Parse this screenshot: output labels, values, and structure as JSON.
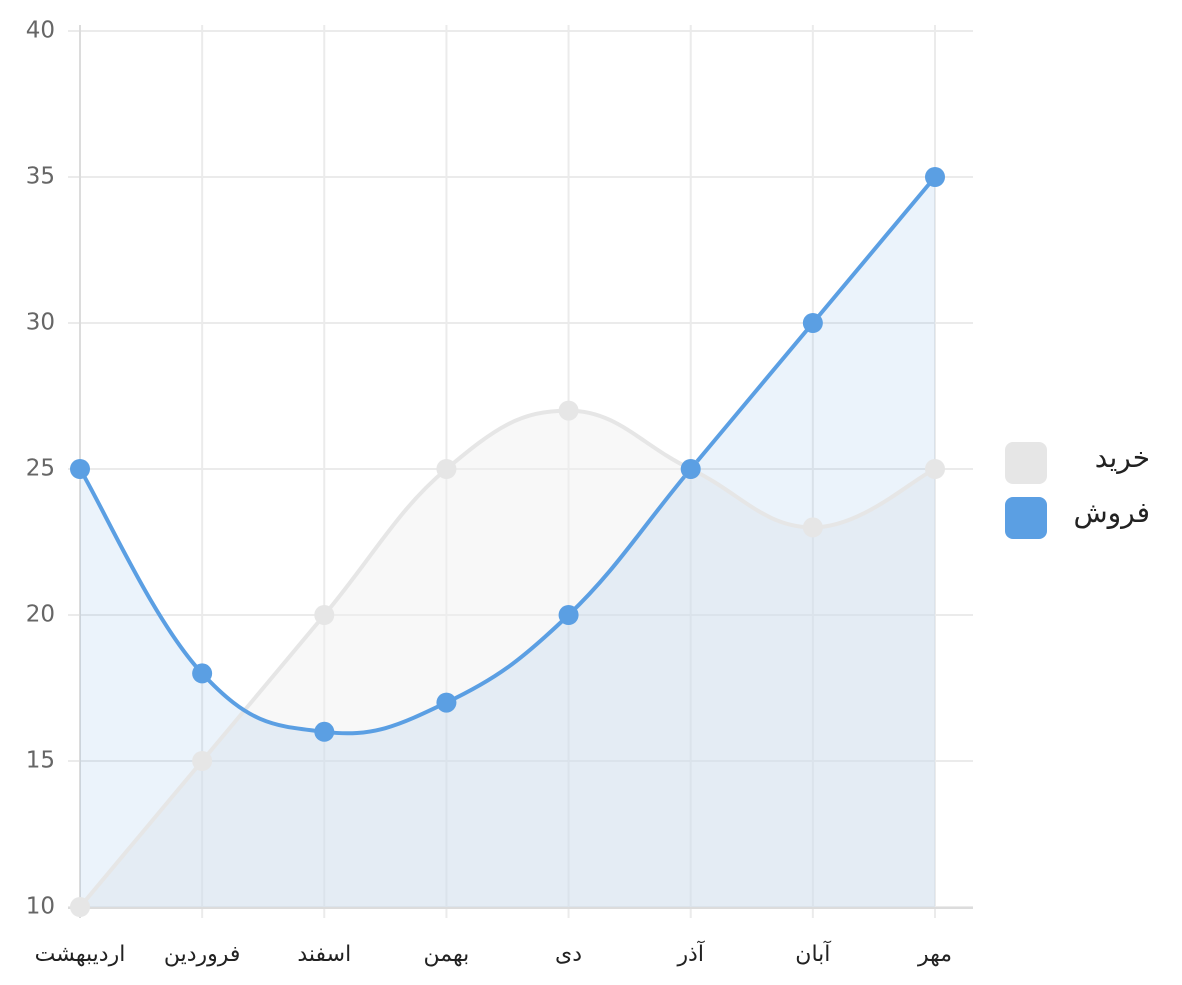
{
  "chart_data": {
    "type": "line",
    "categories": [
      "اردیبهشت",
      "فروردین",
      "اسفند",
      "بهمن",
      "دی",
      "آذر",
      "آبان",
      "مهر"
    ],
    "series": [
      {
        "name": "خرید",
        "color": "#e6e6e6",
        "values": [
          10,
          15,
          20,
          25,
          27,
          25,
          23,
          25
        ]
      },
      {
        "name": "فروش",
        "color": "#5b9fe3",
        "values": [
          25,
          18,
          16,
          17,
          20,
          25,
          30,
          35
        ]
      }
    ],
    "ylim": [
      10,
      40
    ],
    "yticks": [
      10,
      15,
      20,
      25,
      30,
      35,
      40
    ],
    "grid": true,
    "legend": "right"
  }
}
